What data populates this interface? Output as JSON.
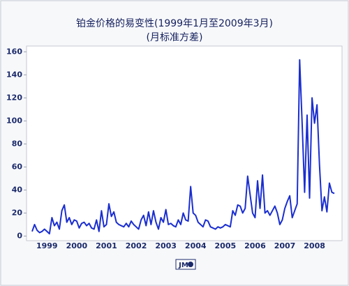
{
  "chart_data": {
    "type": "line",
    "title": "铂金价格的易变性(1999年1月至2009年3月)",
    "subtitle": "(月标准方差)",
    "logo": "JM",
    "categories": [
      null,
      null,
      null,
      null,
      null,
      null,
      "1999",
      null,
      null,
      null,
      null,
      null,
      null,
      null,
      null,
      null,
      null,
      null,
      "2000",
      null,
      null,
      null,
      null,
      null,
      null,
      null,
      null,
      null,
      null,
      null,
      "2001",
      null,
      null,
      null,
      null,
      null,
      null,
      null,
      null,
      null,
      null,
      null,
      "2002",
      null,
      null,
      null,
      null,
      null,
      null,
      null,
      null,
      null,
      null,
      null,
      "2003",
      null,
      null,
      null,
      null,
      null,
      null,
      null,
      null,
      null,
      null,
      null,
      "2004",
      null,
      null,
      null,
      null,
      null,
      null,
      null,
      null,
      null,
      null,
      null,
      "2005",
      null,
      null,
      null,
      null,
      null,
      null,
      null,
      null,
      null,
      null,
      null,
      "2006",
      null,
      null,
      null,
      null,
      null,
      null,
      null,
      null,
      null,
      null,
      null,
      "2007",
      null,
      null,
      null,
      null,
      null,
      null,
      null,
      null,
      null,
      null,
      null,
      "2008",
      null,
      null,
      null,
      null,
      null,
      null,
      null,
      null
    ],
    "series": [
      {
        "color": "#1a2ed0",
        "values": [
          4,
          10,
          5,
          3,
          4,
          6,
          4,
          2,
          16,
          9,
          12,
          6,
          22,
          27,
          12,
          16,
          10,
          14,
          13,
          7,
          11,
          12,
          9,
          11,
          7,
          6,
          14,
          4,
          22,
          8,
          10,
          28,
          17,
          21,
          12,
          10,
          9,
          8,
          11,
          8,
          13,
          10,
          8,
          6,
          14,
          18,
          9,
          21,
          10,
          22,
          12,
          6,
          16,
          12,
          23,
          10,
          11,
          9,
          8,
          14,
          10,
          20,
          14,
          13,
          43,
          20,
          18,
          12,
          10,
          8,
          14,
          13,
          8,
          7,
          6,
          8,
          7,
          8,
          10,
          9,
          8,
          22,
          18,
          27,
          26,
          20,
          24,
          52,
          36,
          20,
          16,
          48,
          24,
          53,
          20,
          22,
          18,
          22,
          26,
          20,
          10,
          14,
          24,
          30,
          35,
          16,
          22,
          28,
          153,
          98,
          38,
          105,
          33,
          120,
          98,
          114,
          62,
          22,
          34,
          21,
          46,
          38,
          37
        ]
      }
    ],
    "ylim": [
      -4,
      165
    ],
    "yticks": [
      0,
      20,
      40,
      60,
      80,
      100,
      120,
      140,
      160
    ]
  }
}
